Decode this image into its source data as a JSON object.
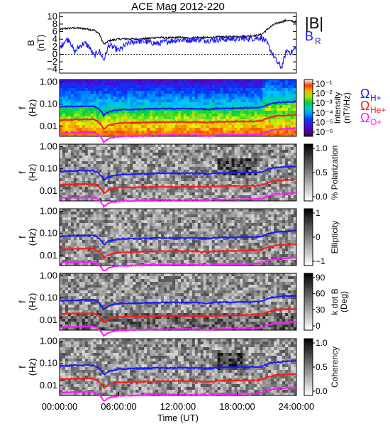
{
  "chart_data": {
    "type": "line+spectrogram",
    "title": "ACE Mag 2012-220",
    "xlabel": "Time (UT)",
    "x_tick_labels": [
      "00:00:00",
      "06:00:00",
      "12:00:00",
      "18:00:00",
      "24:00:00"
    ],
    "x_range_hours": [
      0,
      24
    ],
    "panels": [
      {
        "id": "b-field",
        "type": "line",
        "ylabel": "B",
        "yunit": "(nT)",
        "y_tick_labels": [
          "10",
          "8",
          "6",
          "4",
          "2",
          "0",
          "−2",
          "−4"
        ],
        "ylim": [
          -5,
          11
        ],
        "legend": [
          "|B|",
          "B",
          "R"
        ],
        "series": [
          {
            "name": "|B|",
            "color": "#000000",
            "x_hours": [
              0,
              0.5,
              1,
              1.5,
              2,
              2.5,
              3,
              3.5,
              4,
              4.5,
              5,
              6,
              7,
              8,
              9,
              10,
              11,
              12,
              13,
              14,
              15,
              16,
              17,
              18,
              19,
              20,
              20.5,
              21,
              21.5,
              22,
              22.5,
              23,
              23.5,
              24
            ],
            "values": [
              6.5,
              6.8,
              6.9,
              7.0,
              6.9,
              6.8,
              6.6,
              6.4,
              5.5,
              2.6,
              3.6,
              4.0,
              4.1,
              4.0,
              4.2,
              4.5,
              4.3,
              4.5,
              4.3,
              4.5,
              4.4,
              4.6,
              4.6,
              4.7,
              4.8,
              5.0,
              5.3,
              6.5,
              7.5,
              8.2,
              8.6,
              9.0,
              8.8,
              8.5
            ]
          },
          {
            "name": "BR",
            "color": "#1a1aff",
            "x_hours": [
              0,
              0.5,
              1,
              1.5,
              2,
              2.5,
              3,
              3.5,
              4,
              4.5,
              5,
              6,
              7,
              8,
              9,
              10,
              11,
              12,
              13,
              14,
              15,
              16,
              17,
              18,
              19,
              20,
              20.5,
              21,
              21.5,
              22,
              22.5,
              23,
              23.5,
              24
            ],
            "values": [
              1.5,
              3.5,
              4.0,
              0.5,
              2.0,
              3.0,
              2.0,
              -0.5,
              1.0,
              -1.5,
              2.5,
              1.0,
              3.0,
              3.5,
              3.2,
              2.8,
              3.5,
              3.8,
              3.8,
              3.9,
              3.7,
              3.9,
              4.0,
              4.1,
              4.2,
              4.3,
              4.4,
              3.0,
              0.5,
              -2.0,
              -3.5,
              1.0,
              0.5,
              2.0
            ]
          }
        ]
      },
      {
        "id": "intensity",
        "type": "heatmap",
        "ylabel": "f",
        "yunit": "(Hz)",
        "y_tick_labels": [
          "1.00",
          "0.10",
          "0.01"
        ],
        "colorbar_label": "Intensity",
        "colorbar_unit": "(nT²/Hz)",
        "colorbar_ticks": [
          "10⁻¹",
          "10⁻²",
          "10⁻³",
          "10⁻⁴",
          "10⁻⁵",
          "10⁻⁶"
        ],
        "colormap": "rainbow",
        "legend": [
          "Ω",
          "H+",
          "Ω",
          "He+",
          "Ω",
          "O+"
        ]
      },
      {
        "id": "polarization",
        "type": "heatmap",
        "ylabel": "f",
        "yunit": "(Hz)",
        "y_tick_labels": [
          "1.00",
          "0.10",
          "0.01"
        ],
        "colorbar_label": "% Polarization",
        "colorbar_ticks": [
          "1.0",
          "0.5",
          "0.0"
        ],
        "colormap": "gray"
      },
      {
        "id": "ellipticity",
        "type": "heatmap",
        "ylabel": "f",
        "yunit": "(Hz)",
        "y_tick_labels": [
          "1.00",
          "0.10",
          "0.01"
        ],
        "colorbar_label": "Ellipticity",
        "colorbar_ticks": [
          "1",
          "0",
          "−1"
        ],
        "colormap": "blue-white-red"
      },
      {
        "id": "kdotb",
        "type": "heatmap",
        "ylabel": "f",
        "yunit": "(Hz)",
        "y_tick_labels": [
          "1.00",
          "0.10",
          "0.01"
        ],
        "colorbar_label": "k dot B",
        "colorbar_unit": "(Deg)",
        "colorbar_ticks": [
          "90",
          "60",
          "30",
          "0"
        ],
        "colormap": "gray"
      },
      {
        "id": "coherency",
        "type": "heatmap",
        "ylabel": "f",
        "yunit": "(Hz)",
        "y_tick_labels": [
          "1.00",
          "0.10",
          "0.01"
        ],
        "colorbar_label": "Coherency",
        "colorbar_ticks": [
          "1.0",
          "0.5",
          "0.0"
        ],
        "colormap": "gray"
      }
    ],
    "gyrofrequency_lines": [
      {
        "name": "H+",
        "color": "#1a1aff",
        "x_hours": [
          0,
          1,
          2,
          3,
          3.5,
          4,
          4.5,
          5,
          6,
          8,
          10,
          12,
          14,
          15,
          16,
          18,
          20,
          20.5,
          21,
          21.5,
          22,
          23,
          24
        ],
        "freq_hz": [
          0.075,
          0.078,
          0.08,
          0.082,
          0.08,
          0.06,
          0.03,
          0.045,
          0.055,
          0.058,
          0.062,
          0.062,
          0.062,
          0.058,
          0.064,
          0.066,
          0.068,
          0.072,
          0.09,
          0.105,
          0.115,
          0.125,
          0.13
        ]
      },
      {
        "name": "He+",
        "color": "#ff1a1a",
        "x_hours": [
          0,
          1,
          2,
          3,
          3.5,
          4,
          4.5,
          5,
          6,
          8,
          10,
          12,
          14,
          15,
          16,
          18,
          20,
          20.5,
          21,
          21.5,
          22,
          23,
          24
        ],
        "freq_hz": [
          0.019,
          0.0195,
          0.02,
          0.0205,
          0.02,
          0.015,
          0.0075,
          0.011,
          0.0138,
          0.0145,
          0.0155,
          0.0155,
          0.0155,
          0.0145,
          0.016,
          0.0165,
          0.017,
          0.018,
          0.0225,
          0.026,
          0.029,
          0.031,
          0.0325
        ]
      },
      {
        "name": "O+",
        "color": "#ff1aff",
        "x_hours": [
          0,
          1,
          2,
          3,
          3.5,
          4,
          4.5,
          5,
          6,
          8,
          10,
          12,
          14,
          15,
          16,
          18,
          20,
          20.5,
          21,
          21.5,
          22,
          23,
          24
        ],
        "freq_hz": [
          0.0047,
          0.0049,
          0.005,
          0.0051,
          0.005,
          0.0038,
          0.0019,
          0.0028,
          0.0034,
          0.0036,
          0.0039,
          0.0039,
          0.0039,
          0.0036,
          0.004,
          0.0041,
          0.0043,
          0.0045,
          0.0056,
          0.0065,
          0.0072,
          0.0078,
          0.0081
        ]
      }
    ]
  }
}
